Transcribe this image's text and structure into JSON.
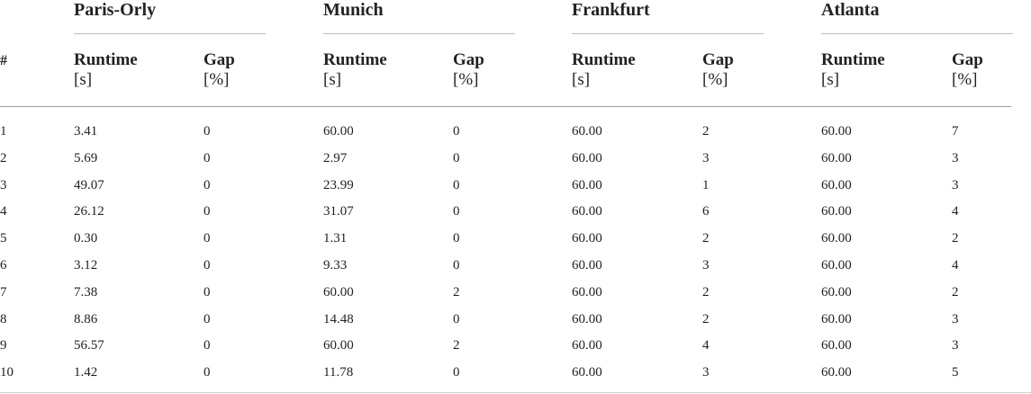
{
  "table": {
    "row_number_label": "#",
    "groups": [
      {
        "name": "Paris-Orly"
      },
      {
        "name": "Munich"
      },
      {
        "name": "Frankfurt"
      },
      {
        "name": "Atlanta"
      }
    ],
    "runtime_label": "Runtime",
    "runtime_unit": "[s]",
    "gap_label": "Gap",
    "gap_unit": "[%]",
    "rows": [
      [
        "1",
        "3.41",
        "0",
        "60.00",
        "0",
        "60.00",
        "2",
        "60.00",
        "7"
      ],
      [
        "2",
        "5.69",
        "0",
        "2.97",
        "0",
        "60.00",
        "3",
        "60.00",
        "3"
      ],
      [
        "3",
        "49.07",
        "0",
        "23.99",
        "0",
        "60.00",
        "1",
        "60.00",
        "3"
      ],
      [
        "4",
        "26.12",
        "0",
        "31.07",
        "0",
        "60.00",
        "6",
        "60.00",
        "4"
      ],
      [
        "5",
        "0.30",
        "0",
        "1.31",
        "0",
        "60.00",
        "2",
        "60.00",
        "2"
      ],
      [
        "6",
        "3.12",
        "0",
        "9.33",
        "0",
        "60.00",
        "3",
        "60.00",
        "4"
      ],
      [
        "7",
        "7.38",
        "0",
        "60.00",
        "2",
        "60.00",
        "2",
        "60.00",
        "2"
      ],
      [
        "8",
        "8.86",
        "0",
        "14.48",
        "0",
        "60.00",
        "2",
        "60.00",
        "3"
      ],
      [
        "9",
        "56.57",
        "0",
        "60.00",
        "2",
        "60.00",
        "4",
        "60.00",
        "3"
      ],
      [
        "10",
        "1.42",
        "0",
        "11.78",
        "0",
        "60.00",
        "3",
        "60.00",
        "5"
      ]
    ]
  }
}
